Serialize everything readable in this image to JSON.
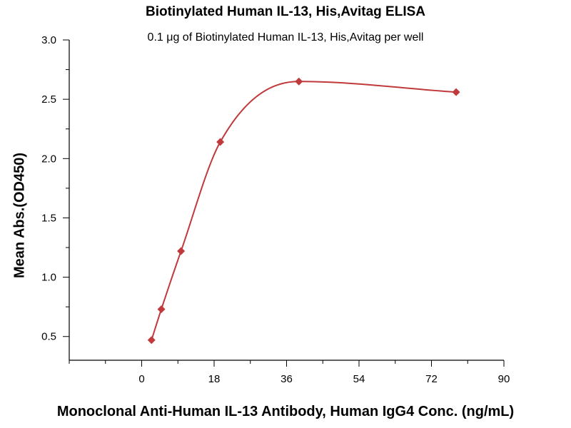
{
  "chart_data": {
    "type": "scatter",
    "title": "Biotinylated Human IL-13, His,Avitag ELISA",
    "subtitle": "0.1 μg of Biotinylated Human IL-13, His,Avitag per well",
    "xlabel": "Monoclonal Anti-Human IL-13 Antibody, Human IgG4 Conc. (ng/mL)",
    "ylabel": "Mean Abs.(OD450)",
    "xlim": [
      -18,
      90
    ],
    "ylim": [
      0.3,
      3.0
    ],
    "x_ticks": [
      "0",
      "18",
      "36",
      "54",
      "72",
      "90"
    ],
    "y_ticks": [
      "0.5",
      "1.0",
      "1.5",
      "2.0",
      "2.5",
      "3.0"
    ],
    "grid": false,
    "marker": "diamond",
    "color": "#c0393b",
    "series": [
      {
        "x": [
          2.44,
          4.88,
          9.77,
          19.53,
          39.06,
          78.13
        ],
        "y": [
          0.47,
          0.73,
          1.22,
          2.14,
          2.65,
          2.56
        ]
      }
    ],
    "fit_curve": "sigmoidal"
  }
}
